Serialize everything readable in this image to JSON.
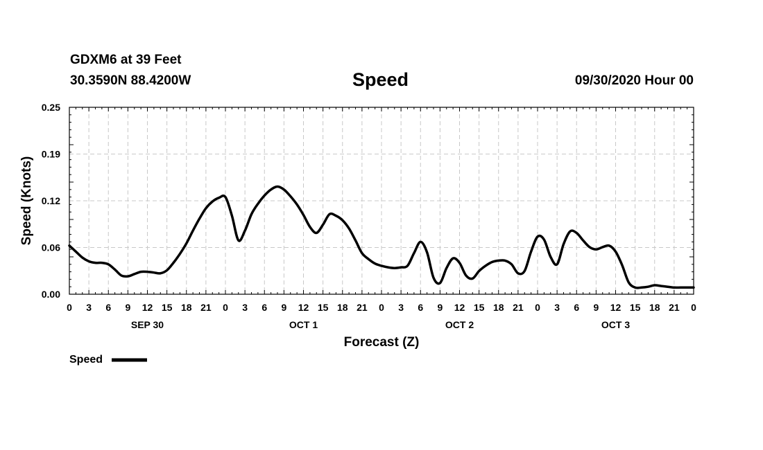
{
  "header": {
    "station": "GDXM6 at 39 Feet",
    "coords": "30.3590N 88.4200W",
    "title": "Speed",
    "run_time": "09/30/2020 Hour 00"
  },
  "colors": {
    "line": "#000000",
    "grid": "#c8c8c8",
    "background": "#ffffff"
  },
  "chart_data": {
    "type": "line",
    "title": "Speed",
    "xlabel": "Forecast (Z)",
    "ylabel": "Speed (Knots)",
    "ylim": [
      0,
      0.25
    ],
    "xlim": [
      0,
      96
    ],
    "yticks": [
      "0.00",
      "0.06",
      "0.12",
      "0.19",
      "0.25"
    ],
    "ytick_values": [
      0,
      0.0625,
      0.125,
      0.1875,
      0.25
    ],
    "xtick_labels": [
      "0",
      "3",
      "6",
      "9",
      "12",
      "15",
      "18",
      "21",
      "0",
      "3",
      "6",
      "9",
      "12",
      "15",
      "18",
      "21",
      "0",
      "3",
      "6",
      "9",
      "12",
      "15",
      "18",
      "21",
      "0",
      "3",
      "6",
      "9",
      "12",
      "15",
      "18",
      "21",
      "0"
    ],
    "date_labels": [
      {
        "label": "SEP 30",
        "hour": 12
      },
      {
        "label": "OCT 1",
        "hour": 36
      },
      {
        "label": "OCT 2",
        "hour": 60
      },
      {
        "label": "OCT 3",
        "hour": 84
      }
    ],
    "grid": true,
    "legend": {
      "position": "bottom-left",
      "label": "Speed"
    },
    "series": [
      {
        "name": "Speed",
        "x": [
          0,
          1,
          2,
          3,
          4,
          5,
          6,
          7,
          8,
          9,
          10,
          11,
          12,
          13,
          14,
          15,
          16,
          17,
          18,
          19,
          20,
          21,
          22,
          23,
          24,
          25,
          26,
          27,
          28,
          29,
          30,
          31,
          32,
          33,
          34,
          35,
          36,
          37,
          38,
          39,
          40,
          41,
          42,
          43,
          44,
          45,
          46,
          47,
          48,
          49,
          50,
          51,
          52,
          53,
          54,
          55,
          56,
          57,
          58,
          59,
          60,
          61,
          62,
          63,
          64,
          65,
          66,
          67,
          68,
          69,
          70,
          71,
          72,
          73,
          74,
          75,
          76,
          77,
          78,
          79,
          80,
          81,
          82,
          83,
          84,
          85,
          86,
          87,
          88,
          89,
          90,
          91,
          92,
          93,
          94,
          95,
          96
        ],
        "values": [
          0.065,
          0.057,
          0.049,
          0.044,
          0.042,
          0.042,
          0.04,
          0.033,
          0.025,
          0.024,
          0.027,
          0.03,
          0.03,
          0.029,
          0.028,
          0.032,
          0.042,
          0.054,
          0.068,
          0.085,
          0.101,
          0.115,
          0.124,
          0.129,
          0.13,
          0.105,
          0.072,
          0.085,
          0.107,
          0.121,
          0.132,
          0.14,
          0.144,
          0.14,
          0.131,
          0.12,
          0.106,
          0.09,
          0.082,
          0.093,
          0.107,
          0.105,
          0.099,
          0.088,
          0.072,
          0.055,
          0.047,
          0.041,
          0.038,
          0.036,
          0.035,
          0.036,
          0.038,
          0.055,
          0.07,
          0.056,
          0.022,
          0.015,
          0.035,
          0.048,
          0.042,
          0.025,
          0.021,
          0.031,
          0.038,
          0.043,
          0.045,
          0.045,
          0.04,
          0.028,
          0.031,
          0.057,
          0.077,
          0.073,
          0.05,
          0.04,
          0.067,
          0.084,
          0.082,
          0.072,
          0.063,
          0.06,
          0.063,
          0.065,
          0.057,
          0.039,
          0.016,
          0.009,
          0.009,
          0.01,
          0.012,
          0.011,
          0.01,
          0.009,
          0.009,
          0.009,
          0.009
        ]
      }
    ]
  }
}
